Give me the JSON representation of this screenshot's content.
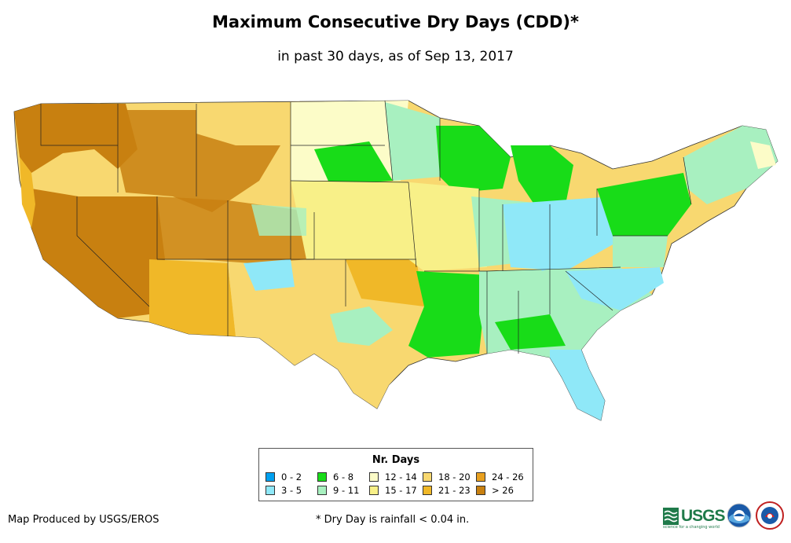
{
  "title": "Maximum Consecutive Dry Days (CDD)*",
  "subtitle": "in past 30 days, as of Sep 13, 2017",
  "legend": {
    "title": "Nr. Days",
    "items": [
      {
        "label": "0 - 2",
        "color": "#00a0f0"
      },
      {
        "label": "3 - 5",
        "color": "#8fe8f8"
      },
      {
        "label": "6 - 8",
        "color": "#18dc18"
      },
      {
        "label": "9 - 11",
        "color": "#a8f0c0"
      },
      {
        "label": "12 - 14",
        "color": "#fcfcc8"
      },
      {
        "label": "15 - 17",
        "color": "#f8f088"
      },
      {
        "label": "18 - 20",
        "color": "#f8d870"
      },
      {
        "label": "21 - 23",
        "color": "#f0b828"
      },
      {
        "label": "24 - 26",
        "color": "#e8a020"
      },
      {
        "label": "> 26",
        "color": "#c88010"
      }
    ]
  },
  "credit": "Map Produced by USGS/EROS",
  "footnote": "* Dry Day is rainfall < 0.04 in.",
  "logos": {
    "usgs": "USGS",
    "usgs_tagline": "science for a changing world"
  }
}
